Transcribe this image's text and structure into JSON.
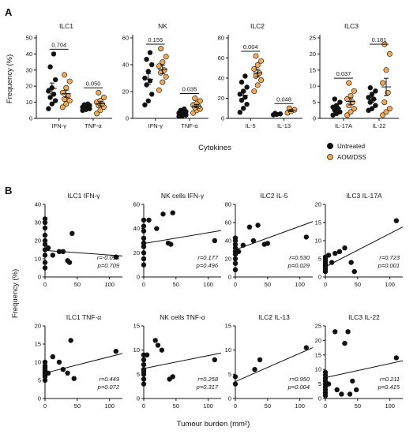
{
  "panel_labels": {
    "a": "A",
    "b": "B"
  },
  "legend": {
    "items": [
      {
        "label": "Untreated",
        "color": "#111111"
      },
      {
        "label": "AOM/DSS",
        "color": "#f0a955"
      }
    ]
  },
  "panelA": {
    "ylabel": "Frequency (%)",
    "xlabel": "Cytokines"
  },
  "panelB": {
    "ylabel": "Frequency (%)",
    "xlabel": "Tumour burden (mm²)"
  },
  "colors": {
    "untreated": "#111111",
    "aomdss": "#f0a955"
  },
  "chart_data": [
    {
      "type": "scatter",
      "title": "ILC1",
      "ylim": [
        0,
        50
      ],
      "yticks": [
        0,
        10,
        20,
        30,
        40,
        50
      ],
      "categories": [
        "IFN-γ",
        "TNF-α"
      ],
      "pvalues": [
        "0.704",
        "0.050"
      ],
      "series": [
        {
          "name": "Untreated",
          "values": [
            [
              6,
              9,
              11,
              13,
              15,
              17,
              19,
              24,
              32,
              40
            ],
            [
              5,
              5.5,
              6,
              6.5,
              7,
              7,
              7.5,
              8,
              8.5,
              9
            ]
          ]
        },
        {
          "name": "AOM/DSS",
          "values": [
            [
              7,
              9,
              11,
              12,
              14,
              16,
              19,
              23,
              27
            ],
            [
              3,
              5,
              7,
              8,
              9,
              10,
              11,
              13,
              16
            ]
          ]
        }
      ]
    },
    {
      "type": "scatter",
      "title": "NK",
      "ylim": [
        0,
        60
      ],
      "yticks": [
        0,
        20,
        40,
        60
      ],
      "categories": [
        "IFN-γ",
        "TNF-α"
      ],
      "pvalues": [
        "0.155",
        "0.035"
      ],
      "series": [
        {
          "name": "Untreated",
          "values": [
            [
              10,
              13,
              18,
              25,
              28,
              30,
              35,
              40,
              44,
              49
            ],
            [
              1.5,
              2,
              2.5,
              3,
              3.5,
              4,
              4.5,
              5,
              6,
              7
            ]
          ]
        },
        {
          "name": "AOM/DSS",
          "values": [
            [
              21,
              27,
              31,
              34,
              36,
              39,
              42,
              46,
              52
            ],
            [
              4,
              6,
              7,
              8,
              9,
              10,
              11,
              13,
              15
            ]
          ]
        }
      ]
    },
    {
      "type": "scatter",
      "title": "ILC2",
      "ylim": [
        0,
        80
      ],
      "yticks": [
        0,
        20,
        40,
        60,
        80
      ],
      "categories": [
        "IL-5",
        "IL-13"
      ],
      "pvalues": [
        "0.004",
        "0.048"
      ],
      "series": [
        {
          "name": "Untreated",
          "values": [
            [
              6,
              10,
              14,
              18,
              21,
              24,
              27,
              31,
              36,
              42
            ],
            [
              3.5,
              4,
              4.5,
              5
            ]
          ]
        },
        {
          "name": "AOM/DSS",
          "values": [
            [
              27,
              33,
              38,
              42,
              45,
              49,
              53,
              57,
              62
            ],
            [
              5.5,
              7,
              8.5,
              10
            ]
          ]
        }
      ]
    },
    {
      "type": "scatter",
      "title": "ILC3",
      "ylim": [
        0,
        25
      ],
      "yticks": [
        0,
        5,
        10,
        15,
        20,
        25
      ],
      "categories": [
        "IL-17A",
        "IL-22"
      ],
      "pvalues": [
        "0.037",
        "0.181"
      ],
      "series": [
        {
          "name": "Untreated",
          "values": [
            [
              1,
              1.5,
              2,
              2.5,
              3,
              3.5,
              4,
              5,
              6
            ],
            [
              2.5,
              3,
              4,
              5,
              6,
              6.5,
              7.5,
              8.5,
              9.5
            ]
          ]
        },
        {
          "name": "AOM/DSS",
          "values": [
            [
              1,
              2,
              3,
              4,
              5,
              6,
              7,
              8.5,
              11
            ],
            [
              1,
              2,
              3,
              5,
              8,
              11,
              15,
              20,
              23
            ]
          ]
        }
      ]
    },
    {
      "type": "scatter",
      "title": "ILC1 IFN-γ",
      "xlim": [
        0,
        120
      ],
      "xticks": [
        0,
        50,
        100
      ],
      "ylim": [
        0,
        40
      ],
      "yticks": [
        0,
        10,
        20,
        30,
        40
      ],
      "points": [
        [
          0,
          5
        ],
        [
          0,
          8
        ],
        [
          0,
          12
        ],
        [
          0,
          15
        ],
        [
          0,
          18
        ],
        [
          0,
          20
        ],
        [
          0,
          23
        ],
        [
          0,
          27
        ],
        [
          0,
          30
        ],
        [
          0,
          32
        ],
        [
          5,
          16
        ],
        [
          12,
          12
        ],
        [
          22,
          14
        ],
        [
          28,
          14
        ],
        [
          35,
          9
        ],
        [
          38,
          8
        ],
        [
          42,
          24
        ],
        [
          110,
          11
        ]
      ],
      "fit": [
        14.6,
        11.6
      ],
      "r": "r=-0.098",
      "p": "p=0.709"
    },
    {
      "type": "scatter",
      "title": "NK cells IFN-γ",
      "xlim": [
        0,
        120
      ],
      "xticks": [
        0,
        50,
        100
      ],
      "ylim": [
        0,
        60
      ],
      "yticks": [
        0,
        20,
        40,
        60
      ],
      "points": [
        [
          0,
          10
        ],
        [
          0,
          15
        ],
        [
          0,
          20
        ],
        [
          0,
          25
        ],
        [
          0,
          28
        ],
        [
          0,
          32
        ],
        [
          0,
          38
        ],
        [
          0,
          42
        ],
        [
          0,
          47
        ],
        [
          8,
          47
        ],
        [
          20,
          40
        ],
        [
          30,
          52
        ],
        [
          38,
          28
        ],
        [
          42,
          27
        ],
        [
          45,
          53
        ],
        [
          110,
          30
        ]
      ],
      "fit": [
        27.6,
        38.4
      ],
      "r": "r=0.177",
      "p": "p=0.496"
    },
    {
      "type": "scatter",
      "title": "ILC2 IL-5",
      "xlim": [
        0,
        120
      ],
      "xticks": [
        0,
        50,
        100
      ],
      "ylim": [
        0,
        80
      ],
      "yticks": [
        0,
        20,
        40,
        60,
        80
      ],
      "points": [
        [
          0,
          8
        ],
        [
          0,
          15
        ],
        [
          0,
          20
        ],
        [
          0,
          25
        ],
        [
          0,
          28
        ],
        [
          0,
          32
        ],
        [
          0,
          36
        ],
        [
          0,
          40
        ],
        [
          0,
          43
        ],
        [
          5,
          28
        ],
        [
          12,
          35
        ],
        [
          22,
          55
        ],
        [
          28,
          40
        ],
        [
          35,
          57
        ],
        [
          45,
          36
        ],
        [
          50,
          37
        ],
        [
          110,
          44
        ]
      ],
      "fit": [
        30,
        61
      ],
      "r": "r=0.530",
      "p": "p=0.029"
    },
    {
      "type": "scatter",
      "title": "ILC3 IL-17A",
      "xlim": [
        0,
        120
      ],
      "xticks": [
        0,
        50,
        100
      ],
      "ylim": [
        0,
        20
      ],
      "yticks": [
        0,
        5,
        10,
        15,
        20
      ],
      "points": [
        [
          0,
          1.5
        ],
        [
          0,
          2
        ],
        [
          0,
          2.5
        ],
        [
          0,
          3
        ],
        [
          0,
          3.5
        ],
        [
          0,
          4
        ],
        [
          0,
          4.5
        ],
        [
          0,
          5
        ],
        [
          0,
          5.5
        ],
        [
          5,
          6
        ],
        [
          10,
          4
        ],
        [
          15,
          6.5
        ],
        [
          22,
          7
        ],
        [
          30,
          8
        ],
        [
          40,
          4
        ],
        [
          45,
          1.5
        ],
        [
          110,
          15.5
        ]
      ],
      "fit": [
        2.8,
        13.8
      ],
      "r": "r=0.723",
      "p": "p=0.001"
    },
    {
      "type": "scatter",
      "title": "ILC1 TNF-α",
      "xlim": [
        0,
        120
      ],
      "xticks": [
        0,
        50,
        100
      ],
      "ylim": [
        0,
        20
      ],
      "yticks": [
        0,
        5,
        10,
        15,
        20
      ],
      "points": [
        [
          0,
          5
        ],
        [
          0,
          6
        ],
        [
          0,
          6.5
        ],
        [
          0,
          7
        ],
        [
          0,
          7.5
        ],
        [
          0,
          8
        ],
        [
          0,
          8.5
        ],
        [
          0,
          9
        ],
        [
          0,
          10
        ],
        [
          5,
          7
        ],
        [
          12,
          11.5
        ],
        [
          22,
          10
        ],
        [
          28,
          8
        ],
        [
          35,
          7
        ],
        [
          40,
          16
        ],
        [
          45,
          5.5
        ],
        [
          110,
          13
        ]
      ],
      "fit": [
        7,
        12.4
      ],
      "r": "r=0.449",
      "p": "p=0.072"
    },
    {
      "type": "scatter",
      "title": "NK cells TNF-α",
      "xlim": [
        0,
        120
      ],
      "xticks": [
        0,
        50,
        100
      ],
      "ylim": [
        0,
        15
      ],
      "yticks": [
        0,
        5,
        10,
        15
      ],
      "points": [
        [
          0,
          3
        ],
        [
          0,
          4
        ],
        [
          0,
          5
        ],
        [
          0,
          5.5
        ],
        [
          0,
          6
        ],
        [
          0,
          7
        ],
        [
          0,
          8
        ],
        [
          0,
          9
        ],
        [
          5,
          9
        ],
        [
          18,
          12
        ],
        [
          22,
          11
        ],
        [
          28,
          10
        ],
        [
          40,
          4
        ],
        [
          45,
          4.5
        ],
        [
          110,
          8
        ]
      ],
      "fit": [
        6.2,
        9.4
      ],
      "r": "r=0.258",
      "p": "p=0.317"
    },
    {
      "type": "scatter",
      "title": "ILC2 IL-13",
      "xlim": [
        0,
        120
      ],
      "xticks": [
        0,
        50,
        100
      ],
      "ylim": [
        0,
        15
      ],
      "yticks": [
        0,
        5,
        10,
        15
      ],
      "points": [
        [
          0,
          3
        ],
        [
          0,
          4.5
        ],
        [
          30,
          6
        ],
        [
          38,
          8
        ],
        [
          110,
          10.5
        ]
      ],
      "fit": [
        3.5,
        10.5
      ],
      "r": "r=0.950",
      "p": "p=0.004"
    },
    {
      "type": "scatter",
      "title": "ILC3 IL-22",
      "xlim": [
        0,
        120
      ],
      "xticks": [
        0,
        50,
        100
      ],
      "ylim": [
        0,
        25
      ],
      "yticks": [
        0,
        5,
        10,
        15,
        20,
        25
      ],
      "points": [
        [
          0,
          1
        ],
        [
          0,
          2
        ],
        [
          0,
          3
        ],
        [
          0,
          4
        ],
        [
          0,
          5
        ],
        [
          0,
          6
        ],
        [
          0,
          7
        ],
        [
          0,
          8
        ],
        [
          0,
          9
        ],
        [
          5,
          5
        ],
        [
          15,
          23
        ],
        [
          18,
          3
        ],
        [
          25,
          1.5
        ],
        [
          30,
          19
        ],
        [
          35,
          23
        ],
        [
          38,
          1.5
        ],
        [
          42,
          6
        ],
        [
          48,
          3
        ],
        [
          110,
          14
        ]
      ],
      "fit": [
        7.2,
        13
      ],
      "r": "r=0.211",
      "p": "p=0.415"
    }
  ]
}
